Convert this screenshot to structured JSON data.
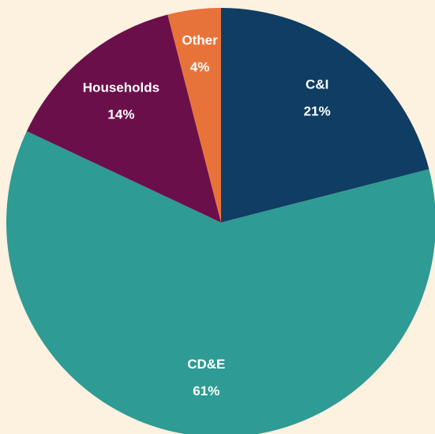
{
  "chart_data": {
    "type": "pie",
    "categories": [
      "C&I",
      "CD&E",
      "Households",
      "Other"
    ],
    "values": [
      21,
      61,
      14,
      4
    ],
    "value_labels": [
      "21%",
      "61%",
      "14%",
      "4%"
    ],
    "colors": [
      "#0f3d63",
      "#2e9b94",
      "#6b0f4b",
      "#e8733a"
    ]
  }
}
